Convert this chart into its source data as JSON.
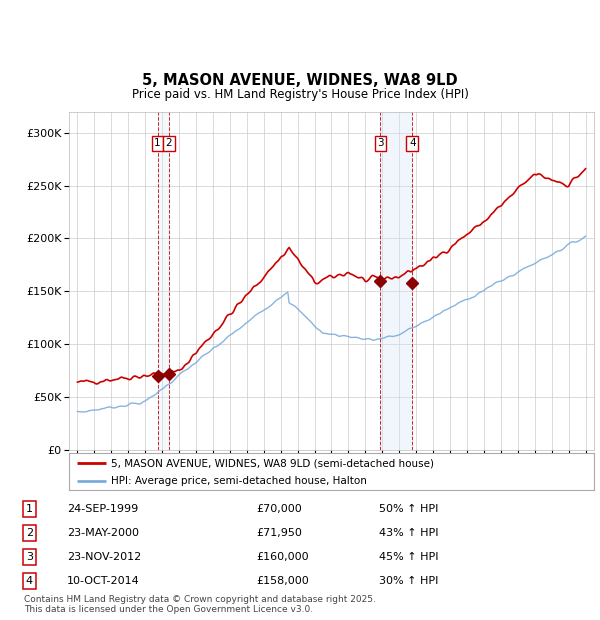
{
  "title": "5, MASON AVENUE, WIDNES, WA8 9LD",
  "subtitle": "Price paid vs. HM Land Registry's House Price Index (HPI)",
  "footer": "Contains HM Land Registry data © Crown copyright and database right 2025.\nThis data is licensed under the Open Government Licence v3.0.",
  "legend_line1": "5, MASON AVENUE, WIDNES, WA8 9LD (semi-detached house)",
  "legend_line2": "HPI: Average price, semi-detached house, Halton",
  "transactions": [
    {
      "num": 1,
      "date": "24-SEP-1999",
      "price": "£70,000",
      "rel": "50% ↑ HPI",
      "year": 1999.73
    },
    {
      "num": 2,
      "date": "23-MAY-2000",
      "price": "£71,950",
      "rel": "43% ↑ HPI",
      "year": 2000.39
    },
    {
      "num": 3,
      "date": "23-NOV-2012",
      "price": "£160,000",
      "rel": "45% ↑ HPI",
      "year": 2012.89
    },
    {
      "num": 4,
      "date": "10-OCT-2014",
      "price": "£158,000",
      "rel": "30% ↑ HPI",
      "year": 2014.77
    }
  ],
  "sale_prices": [
    70000,
    71950,
    160000,
    158000
  ],
  "sale_years": [
    1999.73,
    2000.39,
    2012.89,
    2014.77
  ],
  "hpi_color": "#7aacdc",
  "price_color": "#cc0000",
  "marker_color": "#8b0000",
  "vline_color": "#cc0000",
  "shade_color": "#d6e8f7",
  "ylim": [
    0,
    320000
  ],
  "yticks": [
    0,
    50000,
    100000,
    150000,
    200000,
    250000,
    300000
  ],
  "xlim": [
    1994.5,
    2025.5
  ],
  "background_color": "#ffffff",
  "grid_color": "#cccccc"
}
